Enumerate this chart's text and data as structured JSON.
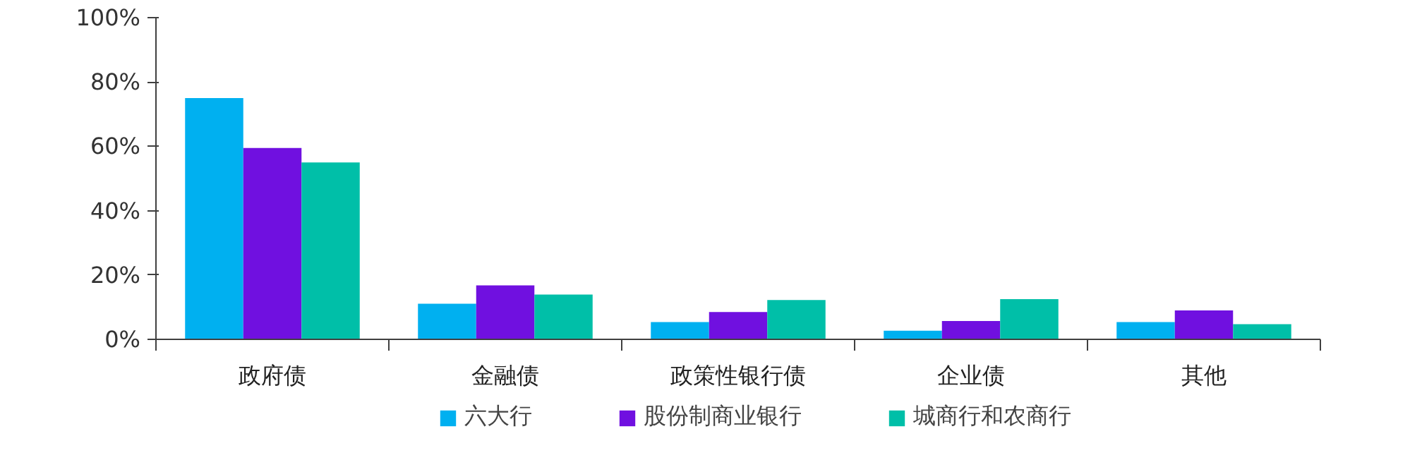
{
  "chart_data": {
    "type": "bar",
    "categories": [
      "政府债",
      "金融债",
      "政策性银行债",
      "企业债",
      "其他"
    ],
    "series": [
      {
        "name": "六大行",
        "color": "#00b0f0",
        "values": [
          75,
          11.1,
          5.4,
          2.7,
          5.4
        ]
      },
      {
        "name": "股份制商业银行",
        "color": "#7010e0",
        "values": [
          59.5,
          16.8,
          8.5,
          5.7,
          9.0
        ]
      },
      {
        "name": "城商行和农商行",
        "color": "#00bfa8",
        "values": [
          55,
          13.9,
          12.2,
          12.5,
          4.7
        ]
      }
    ],
    "ylim": [
      0,
      100
    ],
    "yticks": [
      {
        "value": 0,
        "label": "0%"
      },
      {
        "value": 20,
        "label": "20%"
      },
      {
        "value": 40,
        "label": "40%"
      },
      {
        "value": 60,
        "label": "60%"
      },
      {
        "value": 80,
        "label": "80%"
      },
      {
        "value": 100,
        "label": "100%"
      }
    ],
    "grid": false,
    "legend": "bottom"
  }
}
